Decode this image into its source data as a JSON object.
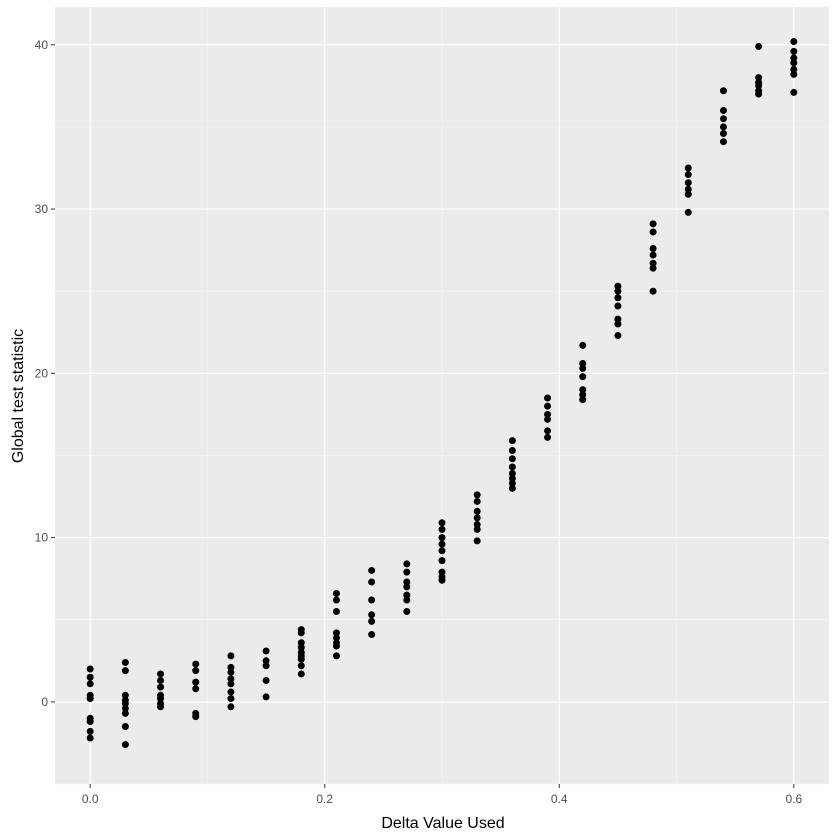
{
  "chart_data": {
    "type": "scatter",
    "xlabel": "Delta Value Used",
    "ylabel": "Global test statistic",
    "xlim": [
      -0.03,
      0.63
    ],
    "ylim": [
      -5,
      42.3
    ],
    "x_ticks": [
      0.0,
      0.2,
      0.4,
      0.6
    ],
    "x_tick_labels": [
      "0.0",
      "0.2",
      "0.4",
      "0.6"
    ],
    "y_ticks": [
      0,
      10,
      20,
      30,
      40
    ],
    "y_tick_labels": [
      "0",
      "10",
      "20",
      "30",
      "40"
    ],
    "grid": true,
    "colors": {
      "panel_background": "#ebebeb",
      "grid_major": "#ffffff",
      "grid_minor": "#f5f5f5",
      "point": "#000000",
      "tick_text": "#4d4d4d",
      "tick_mark": "#333333"
    },
    "points": [
      {
        "x": 0.0,
        "y": 2.0
      },
      {
        "x": 0.0,
        "y": 1.5
      },
      {
        "x": 0.0,
        "y": 1.1
      },
      {
        "x": 0.0,
        "y": 0.4
      },
      {
        "x": 0.0,
        "y": 0.2
      },
      {
        "x": 0.0,
        "y": -1.0
      },
      {
        "x": 0.0,
        "y": -1.2
      },
      {
        "x": 0.0,
        "y": -1.8
      },
      {
        "x": 0.0,
        "y": -2.2
      },
      {
        "x": 0.03,
        "y": 2.4
      },
      {
        "x": 0.03,
        "y": 1.9
      },
      {
        "x": 0.03,
        "y": 0.4
      },
      {
        "x": 0.03,
        "y": 0.1
      },
      {
        "x": 0.03,
        "y": -0.1
      },
      {
        "x": 0.03,
        "y": -0.4
      },
      {
        "x": 0.03,
        "y": -0.7
      },
      {
        "x": 0.03,
        "y": -1.5
      },
      {
        "x": 0.03,
        "y": -2.6
      },
      {
        "x": 0.06,
        "y": 1.7
      },
      {
        "x": 0.06,
        "y": 1.3
      },
      {
        "x": 0.06,
        "y": 0.9
      },
      {
        "x": 0.06,
        "y": 0.4
      },
      {
        "x": 0.06,
        "y": 0.2
      },
      {
        "x": 0.06,
        "y": -0.1
      },
      {
        "x": 0.06,
        "y": -0.3
      },
      {
        "x": 0.09,
        "y": 2.3
      },
      {
        "x": 0.09,
        "y": 1.9
      },
      {
        "x": 0.09,
        "y": 1.2
      },
      {
        "x": 0.09,
        "y": 0.8
      },
      {
        "x": 0.09,
        "y": -0.7
      },
      {
        "x": 0.09,
        "y": -0.9
      },
      {
        "x": 0.12,
        "y": 2.8
      },
      {
        "x": 0.12,
        "y": 2.1
      },
      {
        "x": 0.12,
        "y": 1.8
      },
      {
        "x": 0.12,
        "y": 1.4
      },
      {
        "x": 0.12,
        "y": 1.1
      },
      {
        "x": 0.12,
        "y": 0.6
      },
      {
        "x": 0.12,
        "y": 0.2
      },
      {
        "x": 0.12,
        "y": -0.3
      },
      {
        "x": 0.15,
        "y": 3.1
      },
      {
        "x": 0.15,
        "y": 2.5
      },
      {
        "x": 0.15,
        "y": 2.2
      },
      {
        "x": 0.15,
        "y": 1.3
      },
      {
        "x": 0.15,
        "y": 0.3
      },
      {
        "x": 0.18,
        "y": 4.4
      },
      {
        "x": 0.18,
        "y": 4.2
      },
      {
        "x": 0.18,
        "y": 3.6
      },
      {
        "x": 0.18,
        "y": 3.3
      },
      {
        "x": 0.18,
        "y": 3.0
      },
      {
        "x": 0.18,
        "y": 2.8
      },
      {
        "x": 0.18,
        "y": 2.6
      },
      {
        "x": 0.18,
        "y": 2.2
      },
      {
        "x": 0.18,
        "y": 1.7
      },
      {
        "x": 0.21,
        "y": 6.6
      },
      {
        "x": 0.21,
        "y": 6.2
      },
      {
        "x": 0.21,
        "y": 5.5
      },
      {
        "x": 0.21,
        "y": 4.2
      },
      {
        "x": 0.21,
        "y": 3.9
      },
      {
        "x": 0.21,
        "y": 3.6
      },
      {
        "x": 0.21,
        "y": 3.4
      },
      {
        "x": 0.21,
        "y": 2.8
      },
      {
        "x": 0.24,
        "y": 8.0
      },
      {
        "x": 0.24,
        "y": 7.3
      },
      {
        "x": 0.24,
        "y": 6.2
      },
      {
        "x": 0.24,
        "y": 5.3
      },
      {
        "x": 0.24,
        "y": 4.9
      },
      {
        "x": 0.24,
        "y": 4.1
      },
      {
        "x": 0.27,
        "y": 8.4
      },
      {
        "x": 0.27,
        "y": 7.9
      },
      {
        "x": 0.27,
        "y": 7.3
      },
      {
        "x": 0.27,
        "y": 7.0
      },
      {
        "x": 0.27,
        "y": 6.5
      },
      {
        "x": 0.27,
        "y": 6.2
      },
      {
        "x": 0.27,
        "y": 5.5
      },
      {
        "x": 0.3,
        "y": 10.9
      },
      {
        "x": 0.3,
        "y": 10.5
      },
      {
        "x": 0.3,
        "y": 10.0
      },
      {
        "x": 0.3,
        "y": 9.6
      },
      {
        "x": 0.3,
        "y": 9.2
      },
      {
        "x": 0.3,
        "y": 8.6
      },
      {
        "x": 0.3,
        "y": 7.9
      },
      {
        "x": 0.3,
        "y": 7.6
      },
      {
        "x": 0.3,
        "y": 7.4
      },
      {
        "x": 0.33,
        "y": 12.6
      },
      {
        "x": 0.33,
        "y": 12.2
      },
      {
        "x": 0.33,
        "y": 11.6
      },
      {
        "x": 0.33,
        "y": 11.2
      },
      {
        "x": 0.33,
        "y": 10.8
      },
      {
        "x": 0.33,
        "y": 10.5
      },
      {
        "x": 0.33,
        "y": 9.8
      },
      {
        "x": 0.36,
        "y": 15.9
      },
      {
        "x": 0.36,
        "y": 15.3
      },
      {
        "x": 0.36,
        "y": 14.8
      },
      {
        "x": 0.36,
        "y": 14.3
      },
      {
        "x": 0.36,
        "y": 13.9
      },
      {
        "x": 0.36,
        "y": 13.6
      },
      {
        "x": 0.36,
        "y": 13.3
      },
      {
        "x": 0.36,
        "y": 13.0
      },
      {
        "x": 0.39,
        "y": 18.5
      },
      {
        "x": 0.39,
        "y": 18.0
      },
      {
        "x": 0.39,
        "y": 17.5
      },
      {
        "x": 0.39,
        "y": 17.2
      },
      {
        "x": 0.39,
        "y": 16.5
      },
      {
        "x": 0.39,
        "y": 16.1
      },
      {
        "x": 0.42,
        "y": 21.7
      },
      {
        "x": 0.42,
        "y": 20.6
      },
      {
        "x": 0.42,
        "y": 20.3
      },
      {
        "x": 0.42,
        "y": 19.8
      },
      {
        "x": 0.42,
        "y": 19.0
      },
      {
        "x": 0.42,
        "y": 18.7
      },
      {
        "x": 0.42,
        "y": 18.4
      },
      {
        "x": 0.45,
        "y": 25.3
      },
      {
        "x": 0.45,
        "y": 25.0
      },
      {
        "x": 0.45,
        "y": 24.6
      },
      {
        "x": 0.45,
        "y": 24.1
      },
      {
        "x": 0.45,
        "y": 23.3
      },
      {
        "x": 0.45,
        "y": 23.0
      },
      {
        "x": 0.45,
        "y": 22.3
      },
      {
        "x": 0.48,
        "y": 29.1
      },
      {
        "x": 0.48,
        "y": 28.6
      },
      {
        "x": 0.48,
        "y": 27.6
      },
      {
        "x": 0.48,
        "y": 27.2
      },
      {
        "x": 0.48,
        "y": 26.7
      },
      {
        "x": 0.48,
        "y": 26.4
      },
      {
        "x": 0.48,
        "y": 25.0
      },
      {
        "x": 0.51,
        "y": 32.5
      },
      {
        "x": 0.51,
        "y": 32.1
      },
      {
        "x": 0.51,
        "y": 31.6
      },
      {
        "x": 0.51,
        "y": 31.2
      },
      {
        "x": 0.51,
        "y": 30.9
      },
      {
        "x": 0.51,
        "y": 29.8
      },
      {
        "x": 0.54,
        "y": 37.2
      },
      {
        "x": 0.54,
        "y": 36.0
      },
      {
        "x": 0.54,
        "y": 35.5
      },
      {
        "x": 0.54,
        "y": 35.0
      },
      {
        "x": 0.54,
        "y": 34.6
      },
      {
        "x": 0.54,
        "y": 34.1
      },
      {
        "x": 0.57,
        "y": 39.9
      },
      {
        "x": 0.57,
        "y": 38.0
      },
      {
        "x": 0.57,
        "y": 37.7
      },
      {
        "x": 0.57,
        "y": 37.5
      },
      {
        "x": 0.57,
        "y": 37.2
      },
      {
        "x": 0.57,
        "y": 37.0
      },
      {
        "x": 0.6,
        "y": 40.2
      },
      {
        "x": 0.6,
        "y": 39.6
      },
      {
        "x": 0.6,
        "y": 39.2
      },
      {
        "x": 0.6,
        "y": 38.9
      },
      {
        "x": 0.6,
        "y": 38.5
      },
      {
        "x": 0.6,
        "y": 38.2
      },
      {
        "x": 0.6,
        "y": 37.1
      }
    ]
  }
}
